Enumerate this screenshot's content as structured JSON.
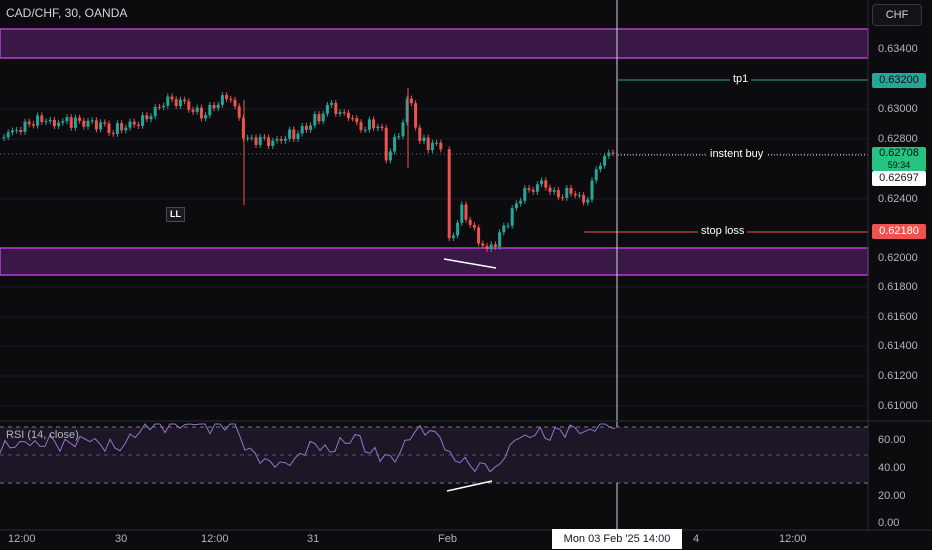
{
  "header": {
    "symbol_line": "CAD/CHF, 30, OANDA",
    "currency_button": "CHF"
  },
  "colors": {
    "zone": "#9c27b0",
    "up": "#26a69a",
    "down": "#ef5350",
    "tp": "#26a69a",
    "stop": "#ef5350",
    "entry": "#d1d4dc"
  },
  "price_axis": {
    "ticks": [
      "0.63400",
      "0.63000",
      "0.62800",
      "0.62400",
      "0.62000",
      "0.61800",
      "0.61600",
      "0.61400",
      "0.61200",
      "0.61000"
    ]
  },
  "rsi": {
    "label": "RSI (14, close)",
    "ticks": [
      "60.00",
      "40.00",
      "20.00",
      "0.00"
    ],
    "upper": 70,
    "mid": 50,
    "lower": 30
  },
  "time_axis": {
    "ticks": [
      "12:00",
      "30",
      "12:00",
      "31",
      "Feb",
      "4",
      "12:00"
    ],
    "cursor_label": "Mon 03 Feb '25   14:00"
  },
  "annotations": {
    "ll": "LL",
    "tp_text": "tp1",
    "entry_text": "instent buy",
    "stop_text": "stop loss"
  },
  "price_tags": {
    "tp": "0.63200",
    "entry": "0.62708",
    "entry_sub": "59:34",
    "last": "0.62697",
    "stop": "0.62180"
  },
  "zones": [
    {
      "from": 0.6336,
      "to": 0.6356
    },
    {
      "from": 0.619,
      "to": 0.6208
    }
  ]
}
